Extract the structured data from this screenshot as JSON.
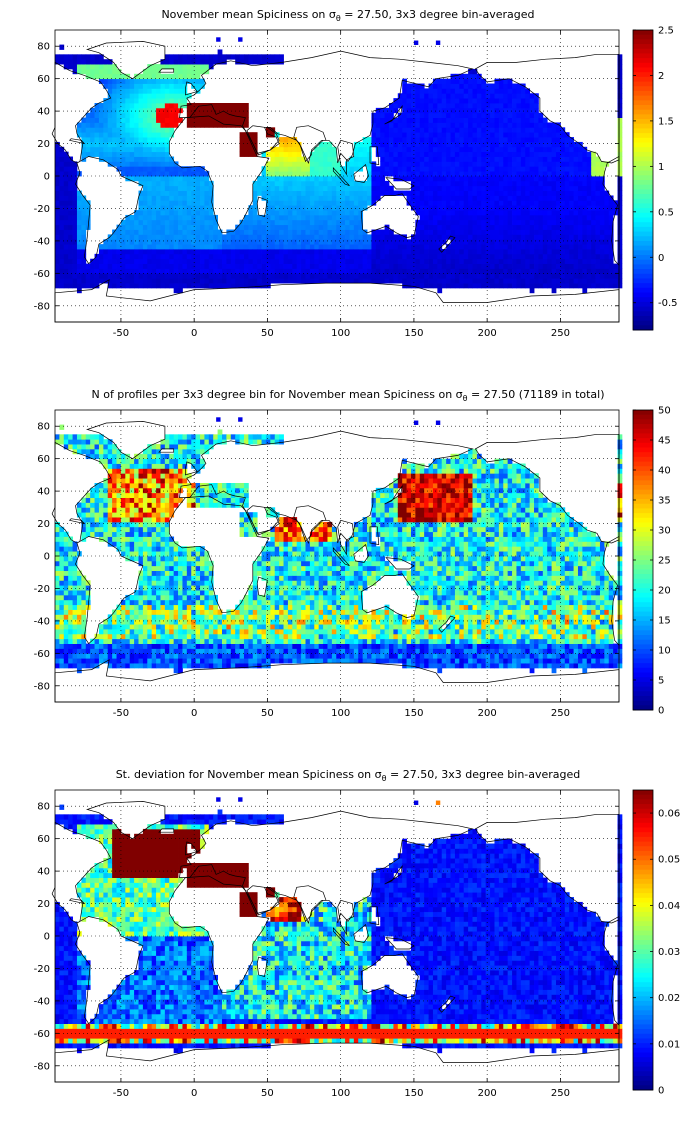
{
  "panels": [
    {
      "id": "spice",
      "title_pre": "November mean Spiciness on ",
      "title_sym": "σ",
      "title_sub": "θ",
      "title_post": " = 27.50, 3x3 degree bin-averaged",
      "map_type": "spiciness",
      "xticks": [
        "-50",
        "0",
        "50",
        "100",
        "150",
        "200",
        "250"
      ],
      "yticks": [
        "80",
        "60",
        "40",
        "20",
        "0",
        "-20",
        "-40",
        "-60",
        "-80"
      ],
      "colorbar": {
        "min": -0.8,
        "max": 2.5,
        "ticks": [
          "2.5",
          "2",
          "1.5",
          "1",
          "0.5",
          "0",
          "-0.5"
        ],
        "tick_values": [
          2.5,
          2,
          1.5,
          1,
          0.5,
          0,
          -0.5
        ]
      }
    },
    {
      "id": "count",
      "title_pre": "N of profiles per 3x3 degree bin for November mean Spiciness on ",
      "title_sym": "σ",
      "title_sub": "θ",
      "title_post": " = 27.50 (71189 in total)",
      "map_type": "count",
      "xticks": [
        "-50",
        "0",
        "50",
        "100",
        "150",
        "200",
        "250"
      ],
      "yticks": [
        "80",
        "60",
        "40",
        "20",
        "0",
        "-20",
        "-40",
        "-60",
        "-80"
      ],
      "colorbar": {
        "min": 0,
        "max": 50,
        "ticks": [
          "50",
          "45",
          "40",
          "35",
          "30",
          "25",
          "20",
          "15",
          "10",
          "5",
          "0"
        ],
        "tick_values": [
          50,
          45,
          40,
          35,
          30,
          25,
          20,
          15,
          10,
          5,
          0
        ]
      }
    },
    {
      "id": "std",
      "title_pre": "St. deviation for November mean Spiciness on ",
      "title_sym": "σ",
      "title_sub": "θ",
      "title_post": " = 27.50, 3x3 degree bin-averaged",
      "map_type": "std",
      "xticks": [
        "-50",
        "0",
        "50",
        "100",
        "150",
        "200",
        "250"
      ],
      "yticks": [
        "80",
        "60",
        "40",
        "20",
        "0",
        "-20",
        "-40",
        "-60",
        "-80"
      ],
      "colorbar": {
        "min": 0,
        "max": 0.065,
        "ticks": [
          "0.06",
          "0.05",
          "0.04",
          "0.03",
          "0.02",
          "0.01",
          "0"
        ],
        "tick_values": [
          0.06,
          0.05,
          0.04,
          0.03,
          0.02,
          0.01,
          0
        ]
      }
    }
  ],
  "colormap": "jet",
  "grid": "dotted"
}
